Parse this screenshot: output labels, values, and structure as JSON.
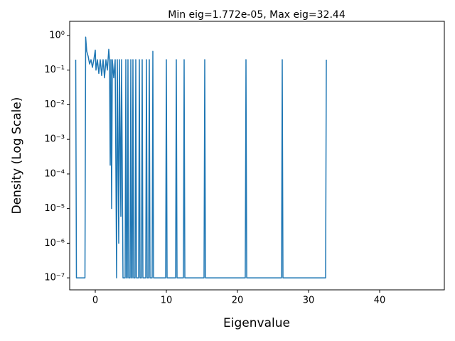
{
  "chart_data": {
    "type": "line",
    "title": "Min eig=1.772e-05, Max eig=32.44",
    "x_label": "Eigenvalue",
    "y_label": "Density (Log Scale)",
    "color": "#1f77b4",
    "log_y": true,
    "grid": false,
    "xlim": [
      -3.6,
      49.1
    ],
    "ylim": [
      4.5e-08,
      2.57
    ],
    "xticks": [
      0,
      10,
      20,
      30,
      40
    ],
    "yticks": [
      {
        "value": 1e-07,
        "label": "10⁻⁷"
      },
      {
        "value": 1e-06,
        "label": "10⁻⁶"
      },
      {
        "value": 1e-05,
        "label": "10⁻⁵"
      },
      {
        "value": 0.0001,
        "label": "10⁻⁴"
      },
      {
        "value": 0.001,
        "label": "10⁻³"
      },
      {
        "value": 0.01,
        "label": "10⁻²"
      },
      {
        "value": 0.1,
        "label": "10⁻¹"
      },
      {
        "value": 1,
        "label": "10⁰"
      }
    ],
    "x": [
      -2.75,
      -2.65,
      -1.45,
      -1.35,
      -1.2,
      -1.0,
      -0.8,
      -0.6,
      -0.4,
      -0.2,
      0,
      0.1,
      0.3,
      0.5,
      0.7,
      0.9,
      1.1,
      1.3,
      1.5,
      1.7,
      1.9,
      2.0,
      2.1,
      2.2,
      2.3,
      2.4,
      2.6,
      2.8,
      3.0,
      3.1,
      3.3,
      3.4,
      3.6,
      3.7,
      3.9,
      4.2,
      4.3,
      4.4,
      4.5,
      4.6,
      4.7,
      4.9,
      5.0,
      5.1,
      5.2,
      5.3,
      5.4,
      5.6,
      5.7,
      5.8,
      6.1,
      6.2,
      6.3,
      6.5,
      6.6,
      6.7,
      7.1,
      7.2,
      7.3,
      7.5,
      7.6,
      7.7,
      8.0,
      8.1,
      8.2,
      9.9,
      10.0,
      10.1,
      11.3,
      11.4,
      11.5,
      12.4,
      12.5,
      12.6,
      15.3,
      15.4,
      15.5,
      21.1,
      21.2,
      21.3,
      26.2,
      26.3,
      26.4,
      32.4,
      32.5
    ],
    "values": [
      0.2,
      1e-07,
      1e-07,
      0.9,
      0.35,
      0.25,
      0.15,
      0.2,
      0.12,
      0.2,
      0.38,
      0.1,
      0.2,
      0.08,
      0.2,
      0.07,
      0.2,
      0.06,
      0.2,
      0.1,
      0.4,
      0.2,
      0.00018,
      0.2,
      1e-05,
      0.2,
      0.06,
      0.2,
      1e-07,
      0.2,
      1e-06,
      0.2,
      6e-06,
      0.2,
      1e-07,
      1e-07,
      0.2,
      1e-07,
      1e-07,
      0.2,
      1e-07,
      1e-07,
      0.2,
      1e-07,
      1e-07,
      0.2,
      1e-07,
      1e-07,
      0.2,
      1e-07,
      1e-07,
      0.2,
      1e-07,
      1e-07,
      0.2,
      1e-07,
      1e-07,
      0.2,
      1e-07,
      1e-07,
      0.2,
      1e-07,
      1e-07,
      0.35,
      1e-07,
      1e-07,
      0.2,
      1e-07,
      1e-07,
      0.2,
      1e-07,
      1e-07,
      0.2,
      1e-07,
      1e-07,
      0.2,
      1e-07,
      1e-07,
      0.2,
      1e-07,
      1e-07,
      0.2,
      1e-07,
      1e-07,
      0.2
    ]
  }
}
